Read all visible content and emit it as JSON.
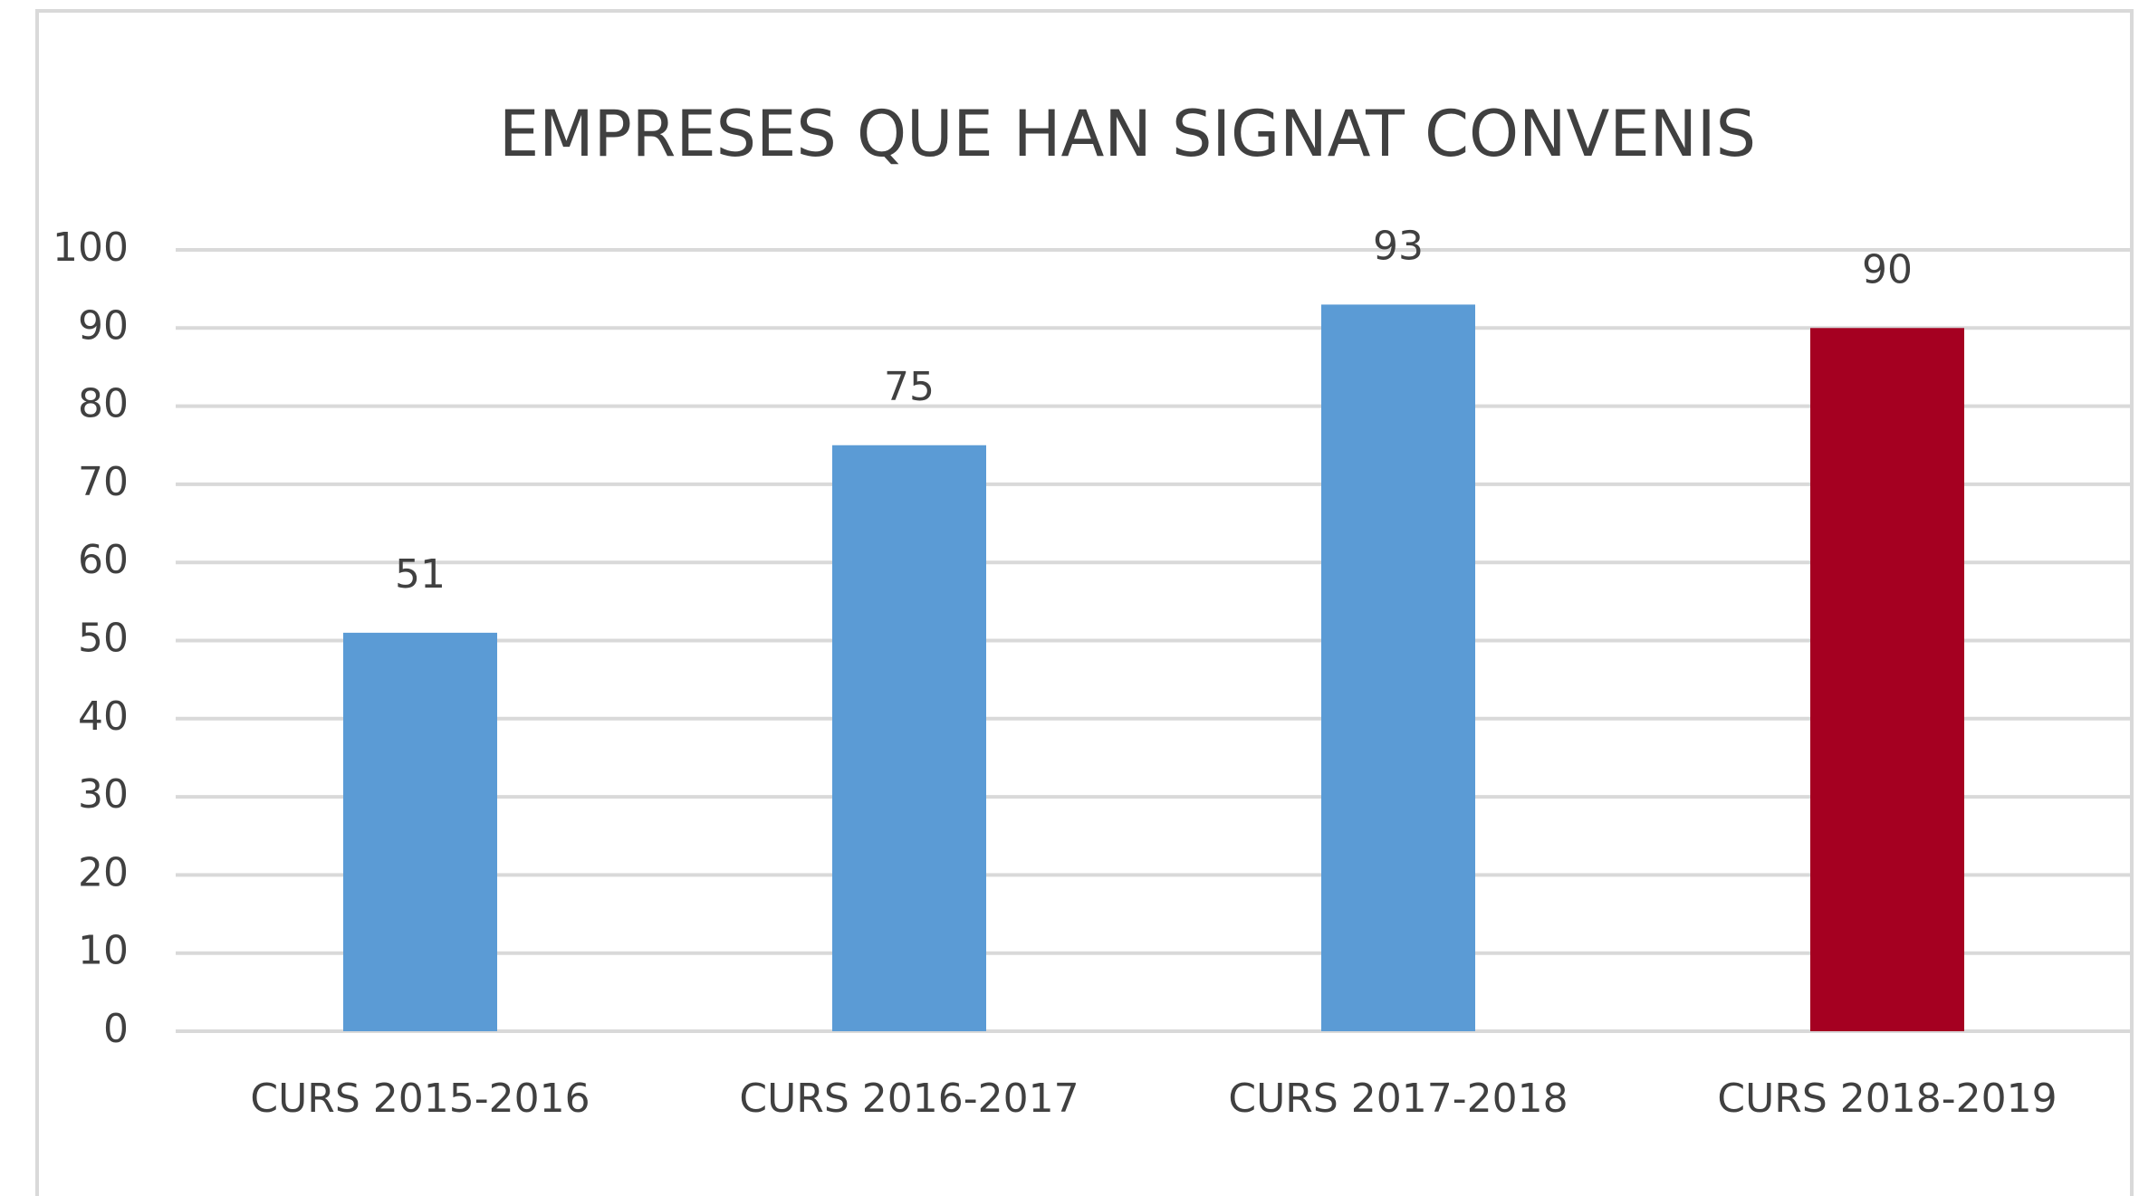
{
  "chart_data": {
    "type": "bar",
    "title": "EMPRESES QUE HAN SIGNAT CONVENIS",
    "categories": [
      "CURS 2015-2016",
      "CURS 2016-2017",
      "CURS 2017-2018",
      "CURS 2018-2019"
    ],
    "values": [
      51,
      75,
      93,
      90
    ],
    "colors": [
      "#5b9bd5",
      "#5b9bd5",
      "#5b9bd5",
      "#a50021"
    ],
    "ylim": [
      0,
      100
    ],
    "yticks": [
      0,
      10,
      20,
      30,
      40,
      50,
      60,
      70,
      80,
      90,
      100
    ],
    "grid": true
  }
}
